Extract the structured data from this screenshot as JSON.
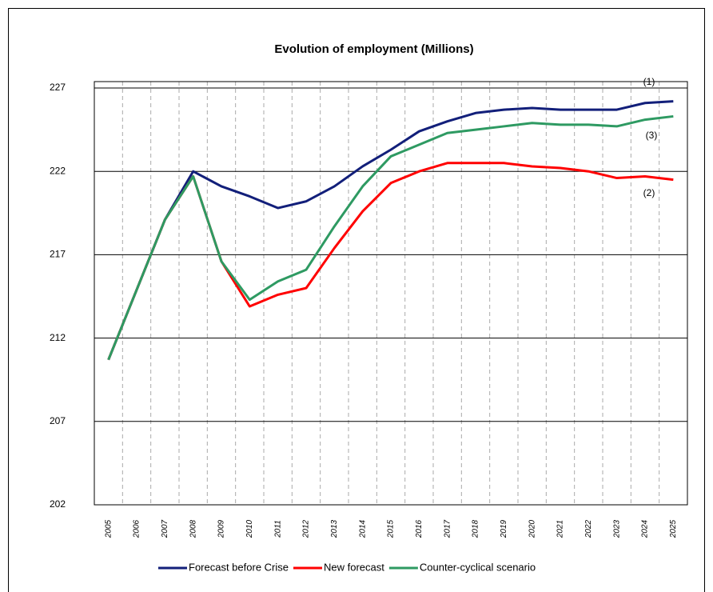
{
  "chart_data": {
    "type": "line",
    "title": "Evolution of employment (Millions)",
    "categories": [
      "2005",
      "2006",
      "2007",
      "2008",
      "2009",
      "2010",
      "2011",
      "2012",
      "2013",
      "2014",
      "2015",
      "2016",
      "2017",
      "2018",
      "2019",
      "2020",
      "2021",
      "2022",
      "2023",
      "2024",
      "2025"
    ],
    "series": [
      {
        "name": "Forecast before Crise",
        "color": "#121f7a",
        "values": [
          210.7,
          214.9,
          219.1,
          222.0,
          221.1,
          220.5,
          219.8,
          220.2,
          221.1,
          222.3,
          223.3,
          224.4,
          225.0,
          225.5,
          225.7,
          225.8,
          225.7,
          225.7,
          225.7,
          226.1,
          226.2
        ]
      },
      {
        "name": "New forecast",
        "color": "#ff0000",
        "values": [
          210.7,
          214.9,
          219.1,
          221.7,
          216.6,
          213.9,
          214.6,
          215.0,
          217.4,
          219.6,
          221.3,
          222.0,
          222.5,
          222.5,
          222.5,
          222.3,
          222.2,
          222.0,
          221.6,
          221.7,
          221.5
        ]
      },
      {
        "name": "Counter-cyclical scenario",
        "color": "#2e9a62",
        "values": [
          210.7,
          214.9,
          219.1,
          221.7,
          216.6,
          214.3,
          215.4,
          216.1,
          218.7,
          221.1,
          222.9,
          223.6,
          224.3,
          224.5,
          224.7,
          224.9,
          224.8,
          224.8,
          224.7,
          225.1,
          225.3
        ]
      }
    ],
    "annotations": [
      "(1)",
      "(3)",
      "(2)"
    ],
    "ylim": [
      202,
      227
    ],
    "yticks": [
      202,
      207,
      212,
      217,
      222,
      227
    ],
    "grid": true
  }
}
